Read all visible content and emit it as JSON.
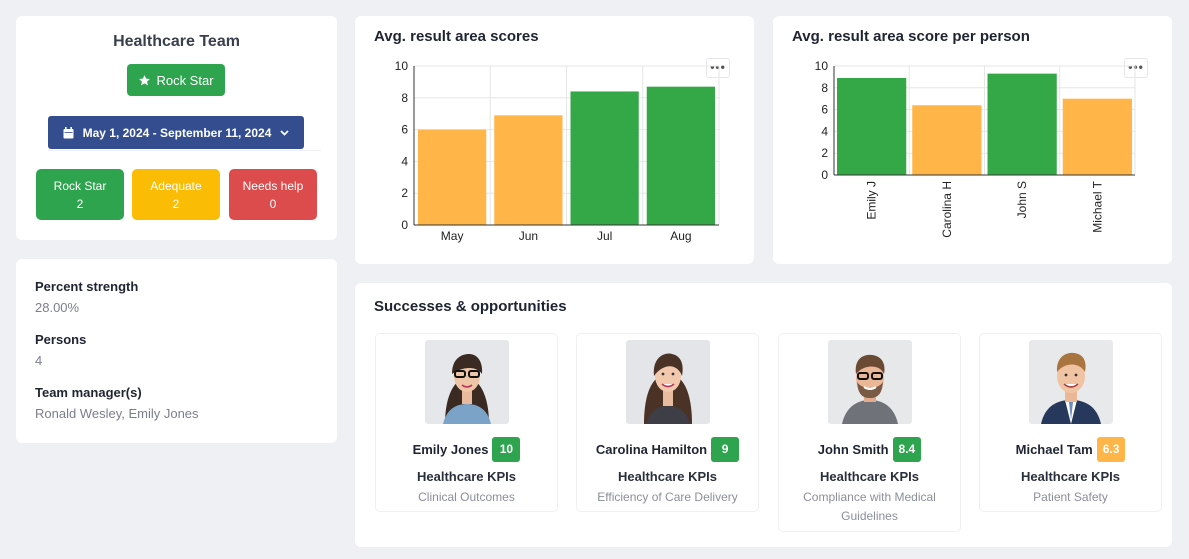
{
  "team": {
    "title": "Healthcare Team",
    "rating_badge": "Rock Star",
    "date_range": "May 1, 2024 - September 11, 2024",
    "stats": [
      {
        "label": "Rock Star",
        "value": "2",
        "color": "#2ea44f"
      },
      {
        "label": "Adequate",
        "value": "2",
        "color": "#fbbc05"
      },
      {
        "label": "Needs help",
        "value": "0",
        "color": "#dc4c4c"
      }
    ]
  },
  "info": {
    "percent_strength_label": "Percent strength",
    "percent_strength_value": "28.00%",
    "persons_label": "Persons",
    "persons_value": "4",
    "managers_label": "Team manager(s)",
    "managers_value": "Ronald Wesley, Emily Jones"
  },
  "colors": {
    "good": "#34a846",
    "medium": "#ffb547"
  },
  "chart_data": [
    {
      "type": "bar",
      "title": "Avg. result area scores",
      "categories": [
        "May",
        "Jun",
        "Jul",
        "Aug"
      ],
      "values": [
        6.0,
        6.9,
        8.4,
        8.7
      ],
      "bar_colors": [
        "#ffb547",
        "#ffb547",
        "#34a846",
        "#34a846"
      ],
      "ylim": [
        0,
        10
      ],
      "yticks": [
        0,
        2,
        4,
        6,
        8,
        10
      ],
      "grid": true
    },
    {
      "type": "bar",
      "title": "Avg. result area score per person",
      "categories": [
        "Emily J",
        "Carolina H",
        "John S",
        "Michael T"
      ],
      "values": [
        8.9,
        6.4,
        9.3,
        7.0
      ],
      "bar_colors": [
        "#34a846",
        "#ffb547",
        "#34a846",
        "#ffb547"
      ],
      "ylim": [
        0,
        10
      ],
      "yticks": [
        0,
        2,
        4,
        6,
        8,
        10
      ],
      "grid": true
    }
  ],
  "successes": {
    "title": "Successes & opportunities",
    "people": [
      {
        "name": "Emily Jones",
        "score": "10",
        "score_color": "#2ea44f",
        "kpi": "Healthcare KPIs",
        "area": "Clinical Outcomes"
      },
      {
        "name": "Carolina Hamilton",
        "score": "9",
        "score_color": "#2ea44f",
        "kpi": "Healthcare KPIs",
        "area": "Efficiency of Care Delivery"
      },
      {
        "name": "John Smith",
        "score": "8.4",
        "score_color": "#2ea44f",
        "kpi": "Healthcare KPIs",
        "area": "Compliance with Medical Guidelines"
      },
      {
        "name": "Michael Tam",
        "score": "6.3",
        "score_color": "#ffb547",
        "kpi": "Healthcare KPIs",
        "area": "Patient Safety"
      }
    ]
  }
}
